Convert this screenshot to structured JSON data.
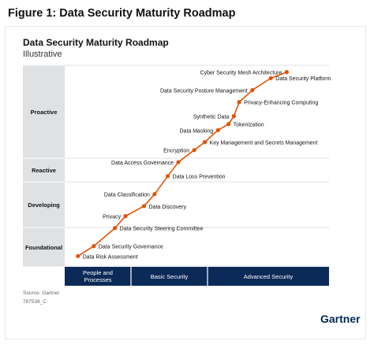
{
  "figure_title": "Figure 1: Data Security Maturity Roadmap",
  "chart_title": "Data Security Maturity Roadmap",
  "subtitle": "Illustrative",
  "source": "Source: Gartner",
  "doc_id": "787538_C",
  "logo": "Gartner",
  "colors": {
    "line": "#e35205",
    "band": "#dfe1e3",
    "axis": "#0b2a58",
    "axis_divider": "#ffffff",
    "gridline": "#d5d7da"
  },
  "chart_data": {
    "type": "line",
    "y_levels": [
      "Foundational",
      "Developing",
      "Reactive",
      "Proactive"
    ],
    "x_categories": [
      "People and Processes",
      "Basic Security",
      "Advanced Security"
    ],
    "points": [
      {
        "label": "Data Risk Assessment",
        "x": 0.05,
        "y": 0.05
      },
      {
        "label": "Data Security Governance",
        "x": 0.11,
        "y": 0.1
      },
      {
        "label": "Data Security Steering Committee",
        "x": 0.19,
        "y": 0.19
      },
      {
        "label": "Privacy",
        "x": 0.23,
        "y": 0.25
      },
      {
        "label": "Data Discovery",
        "x": 0.3,
        "y": 0.3
      },
      {
        "label": "Data Classification",
        "x": 0.34,
        "y": 0.36
      },
      {
        "label": "Data Loss Prevention",
        "x": 0.39,
        "y": 0.45
      },
      {
        "label": "Data Access Governance",
        "x": 0.43,
        "y": 0.52
      },
      {
        "label": "Encryption",
        "x": 0.49,
        "y": 0.58
      },
      {
        "label": "Key Management and Secrets Management",
        "x": 0.53,
        "y": 0.62
      },
      {
        "label": "Data Masking",
        "x": 0.58,
        "y": 0.68
      },
      {
        "label": "Tokenization",
        "x": 0.62,
        "y": 0.71
      },
      {
        "label": "Synthetic Data",
        "x": 0.64,
        "y": 0.75
      },
      {
        "label": "Privacy-Enhancing Computing",
        "x": 0.66,
        "y": 0.82
      },
      {
        "label": "Data Security Posture Management",
        "x": 0.71,
        "y": 0.88
      },
      {
        "label": "Data Security Platform",
        "x": 0.78,
        "y": 0.94
      },
      {
        "label": "Cyber Security Mesh Architecture",
        "x": 0.84,
        "y": 0.97
      }
    ]
  }
}
